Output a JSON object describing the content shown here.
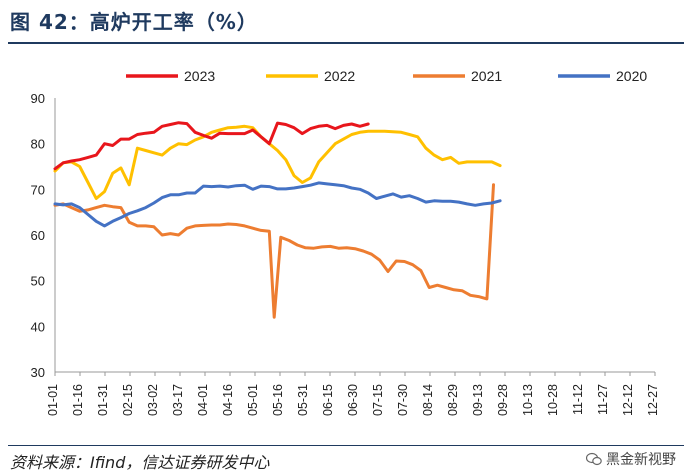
{
  "title": "图 42：高炉开工率（%）",
  "source": "资料来源：Ifind，信达证券研发中心",
  "watermark": "黑金新视野",
  "chart_data": {
    "type": "line",
    "ylim": [
      30,
      90
    ],
    "yticks": [
      30,
      40,
      50,
      60,
      70,
      80,
      90
    ],
    "grid": false,
    "legend_position": "top",
    "x_tick_labels": [
      "01-01",
      "01-16",
      "01-31",
      "02-15",
      "03-02",
      "03-17",
      "04-01",
      "04-16",
      "05-01",
      "05-16",
      "05-31",
      "06-15",
      "06-30",
      "07-15",
      "07-30",
      "08-14",
      "08-29",
      "09-13",
      "09-28",
      "10-13",
      "10-28",
      "11-12",
      "11-27",
      "12-12",
      "12-27"
    ],
    "x_range": [
      1,
      365
    ],
    "series": [
      {
        "name": "2023",
        "color": "#e8161c",
        "points": [
          [
            1,
            74.5
          ],
          [
            6,
            75.8
          ],
          [
            11,
            76.2
          ],
          [
            16,
            76.5
          ],
          [
            21,
            77
          ],
          [
            26,
            77.5
          ],
          [
            31,
            80
          ],
          [
            36,
            79.6
          ],
          [
            41,
            81
          ],
          [
            46,
            81
          ],
          [
            51,
            82
          ],
          [
            56,
            82.3
          ],
          [
            61,
            82.5
          ],
          [
            66,
            83.8
          ],
          [
            71,
            84.2
          ],
          [
            76,
            84.6
          ],
          [
            81,
            84.4
          ],
          [
            86,
            82.5
          ],
          [
            91,
            81.8
          ],
          [
            96,
            81.2
          ],
          [
            101,
            82.3
          ],
          [
            106,
            82.2
          ],
          [
            111,
            82.2
          ],
          [
            116,
            82.2
          ],
          [
            121,
            83
          ],
          [
            126,
            81.5
          ],
          [
            131,
            80
          ],
          [
            136,
            84.5
          ],
          [
            141,
            84.2
          ],
          [
            146,
            83.5
          ],
          [
            151,
            82.2
          ],
          [
            156,
            83.3
          ],
          [
            161,
            83.8
          ],
          [
            166,
            84
          ],
          [
            171,
            83.3
          ],
          [
            176,
            84
          ],
          [
            181,
            84.3
          ],
          [
            186,
            83.8
          ],
          [
            191,
            84.3
          ]
        ]
      },
      {
        "name": "2022",
        "color": "#ffc000",
        "points": [
          [
            1,
            74
          ],
          [
            6,
            75.8
          ],
          [
            11,
            76
          ],
          [
            16,
            75
          ],
          [
            21,
            71.5
          ],
          [
            26,
            68
          ],
          [
            31,
            69.5
          ],
          [
            36,
            73.5
          ],
          [
            41,
            74.7
          ],
          [
            46,
            71
          ],
          [
            51,
            79
          ],
          [
            56,
            78.5
          ],
          [
            61,
            78
          ],
          [
            66,
            77.5
          ],
          [
            71,
            79
          ],
          [
            76,
            80
          ],
          [
            81,
            79.8
          ],
          [
            86,
            80.8
          ],
          [
            91,
            81.5
          ],
          [
            96,
            82.5
          ],
          [
            101,
            83
          ],
          [
            106,
            83.5
          ],
          [
            111,
            83.6
          ],
          [
            116,
            83.8
          ],
          [
            121,
            83.5
          ],
          [
            126,
            81.5
          ],
          [
            131,
            80
          ],
          [
            136,
            78.5
          ],
          [
            141,
            76.5
          ],
          [
            146,
            73
          ],
          [
            151,
            71.5
          ],
          [
            156,
            72.5
          ],
          [
            161,
            76
          ],
          [
            166,
            78
          ],
          [
            171,
            80
          ],
          [
            176,
            81
          ],
          [
            181,
            82
          ],
          [
            186,
            82.5
          ],
          [
            191,
            82.7
          ],
          [
            196,
            82.7
          ],
          [
            201,
            82.7
          ],
          [
            206,
            82.6
          ],
          [
            211,
            82.5
          ],
          [
            216,
            82
          ],
          [
            221,
            81.5
          ],
          [
            226,
            79
          ],
          [
            231,
            77.5
          ],
          [
            236,
            76.5
          ],
          [
            241,
            77
          ],
          [
            246,
            75.7
          ],
          [
            251,
            76
          ],
          [
            256,
            76
          ],
          [
            261,
            76
          ],
          [
            266,
            76
          ],
          [
            271,
            75.2
          ]
        ]
      },
      {
        "name": "2021",
        "color": "#ed7d31",
        "points": [
          [
            1,
            66.5
          ],
          [
            6,
            66.8
          ],
          [
            11,
            66
          ],
          [
            16,
            65.2
          ],
          [
            21,
            65.5
          ],
          [
            26,
            66
          ],
          [
            31,
            66.5
          ],
          [
            36,
            66.2
          ],
          [
            41,
            66
          ],
          [
            46,
            62.8
          ],
          [
            51,
            62
          ],
          [
            56,
            62
          ],
          [
            61,
            61.8
          ],
          [
            66,
            60
          ],
          [
            71,
            60.3
          ],
          [
            76,
            60
          ],
          [
            81,
            61.5
          ],
          [
            86,
            62
          ],
          [
            91,
            62.1
          ],
          [
            96,
            62.2
          ],
          [
            101,
            62.2
          ],
          [
            106,
            62.4
          ],
          [
            111,
            62.3
          ],
          [
            116,
            62
          ],
          [
            121,
            61.5
          ],
          [
            126,
            61
          ],
          [
            131,
            60.8
          ],
          [
            134,
            42
          ],
          [
            138,
            59.5
          ],
          [
            143,
            58.8
          ],
          [
            148,
            57.8
          ],
          [
            153,
            57.2
          ],
          [
            158,
            57.1
          ],
          [
            163,
            57.4
          ],
          [
            168,
            57.5
          ],
          [
            173,
            57.1
          ],
          [
            178,
            57.2
          ],
          [
            183,
            57
          ],
          [
            188,
            56.5
          ],
          [
            193,
            55.8
          ],
          [
            198,
            54.5
          ],
          [
            203,
            52
          ],
          [
            208,
            54.3
          ],
          [
            213,
            54.2
          ],
          [
            218,
            53.5
          ],
          [
            223,
            52.2
          ],
          [
            228,
            48.5
          ],
          [
            233,
            49
          ],
          [
            238,
            48.5
          ],
          [
            243,
            48
          ],
          [
            248,
            47.8
          ],
          [
            253,
            46.8
          ],
          [
            258,
            46.5
          ],
          [
            263,
            46
          ],
          [
            267,
            71
          ]
        ]
      },
      {
        "name": "2020",
        "color": "#4472c4",
        "points": [
          [
            1,
            66.8
          ],
          [
            6,
            66.6
          ],
          [
            11,
            66.8
          ],
          [
            16,
            66
          ],
          [
            21,
            64.5
          ],
          [
            26,
            63
          ],
          [
            31,
            62
          ],
          [
            36,
            63
          ],
          [
            41,
            63.8
          ],
          [
            46,
            64.7
          ],
          [
            51,
            65.3
          ],
          [
            56,
            66
          ],
          [
            61,
            67
          ],
          [
            66,
            68.2
          ],
          [
            71,
            68.8
          ],
          [
            76,
            68.8
          ],
          [
            81,
            69.2
          ],
          [
            86,
            69.2
          ],
          [
            91,
            70.7
          ],
          [
            96,
            70.6
          ],
          [
            101,
            70.7
          ],
          [
            106,
            70.5
          ],
          [
            111,
            70.8
          ],
          [
            116,
            70.9
          ],
          [
            121,
            70
          ],
          [
            126,
            70.7
          ],
          [
            131,
            70.6
          ],
          [
            136,
            70.1
          ],
          [
            141,
            70.1
          ],
          [
            146,
            70.3
          ],
          [
            151,
            70.6
          ],
          [
            156,
            70.9
          ],
          [
            161,
            71.4
          ],
          [
            166,
            71.2
          ],
          [
            171,
            71
          ],
          [
            176,
            70.8
          ],
          [
            181,
            70.3
          ],
          [
            186,
            70
          ],
          [
            191,
            69.2
          ],
          [
            196,
            68
          ],
          [
            201,
            68.5
          ],
          [
            206,
            69
          ],
          [
            211,
            68.3
          ],
          [
            216,
            68.6
          ],
          [
            221,
            68
          ],
          [
            226,
            67.2
          ],
          [
            231,
            67.5
          ],
          [
            236,
            67.4
          ],
          [
            241,
            67.4
          ],
          [
            246,
            67.2
          ],
          [
            251,
            66.8
          ],
          [
            256,
            66.5
          ],
          [
            261,
            66.8
          ],
          [
            266,
            67
          ],
          [
            271,
            67.5
          ]
        ]
      }
    ]
  }
}
